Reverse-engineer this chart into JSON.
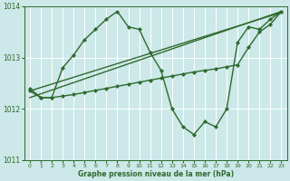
{
  "xlabel": "Graphe pression niveau de la mer (hPa)",
  "xlim": [
    -0.5,
    23.5
  ],
  "ylim": [
    1011,
    1014
  ],
  "yticks": [
    1011,
    1012,
    1013,
    1014
  ],
  "xticks": [
    0,
    1,
    2,
    3,
    4,
    5,
    6,
    7,
    8,
    9,
    10,
    11,
    12,
    13,
    14,
    15,
    16,
    17,
    18,
    19,
    20,
    21,
    22,
    23
  ],
  "bg_color": "#cce8e8",
  "line_color": "#2d6a2d",
  "grid_color": "#ffffff",
  "s1x": [
    0,
    1,
    2,
    3,
    4,
    5,
    6,
    7,
    8,
    9,
    10,
    11,
    12,
    13,
    14,
    15,
    16,
    17,
    18,
    19,
    20,
    21,
    22,
    23
  ],
  "s1y": [
    1012.4,
    1012.22,
    1012.22,
    1012.8,
    1013.05,
    1013.35,
    1013.55,
    1013.75,
    1013.9,
    1013.6,
    1013.55,
    1013.1,
    1012.75,
    1012.0,
    1011.65,
    1011.5,
    1011.75,
    1011.65,
    1012.0,
    1013.3,
    1013.6,
    1013.55,
    1013.75,
    1013.9
  ],
  "s2x": [
    0,
    1,
    2,
    3,
    4,
    5,
    6,
    7,
    8,
    9,
    10,
    11,
    12,
    13,
    14,
    15,
    16,
    17,
    18,
    19,
    20,
    21,
    22,
    23
  ],
  "s2y": [
    1012.35,
    1012.22,
    1012.22,
    1012.25,
    1012.28,
    1012.32,
    1012.36,
    1012.4,
    1012.44,
    1012.48,
    1012.52,
    1012.56,
    1012.6,
    1012.64,
    1012.68,
    1012.72,
    1012.75,
    1012.78,
    1012.82,
    1012.86,
    1013.2,
    1013.5,
    1013.65,
    1013.9
  ],
  "s3x": [
    0,
    23
  ],
  "s3y": [
    1012.35,
    1013.88
  ],
  "s4x": [
    0,
    23
  ],
  "s4y": [
    1012.22,
    1013.9
  ],
  "marker": "D",
  "markersize": 2.2,
  "linewidth": 1.0
}
